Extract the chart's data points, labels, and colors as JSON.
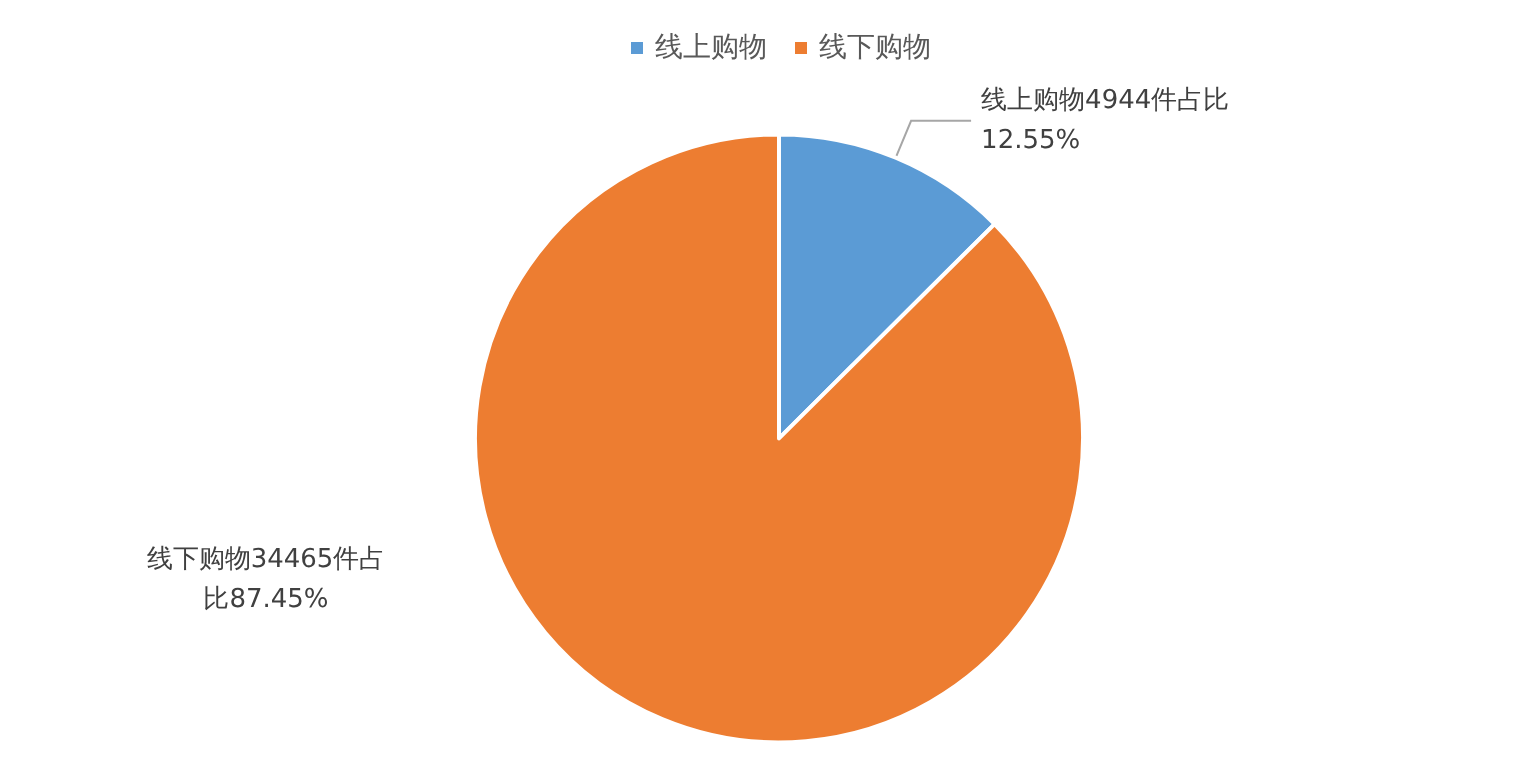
{
  "chart_data": {
    "type": "pie",
    "categories": [
      "线上购物",
      "线下购物"
    ],
    "values": [
      4944,
      34465
    ],
    "colors": [
      "#5b9bd5",
      "#ed7d31"
    ],
    "value_labels": [
      "线上购物4944件占比12.55%",
      "线下购物34465件占比87.45%"
    ],
    "legend": "top"
  }
}
